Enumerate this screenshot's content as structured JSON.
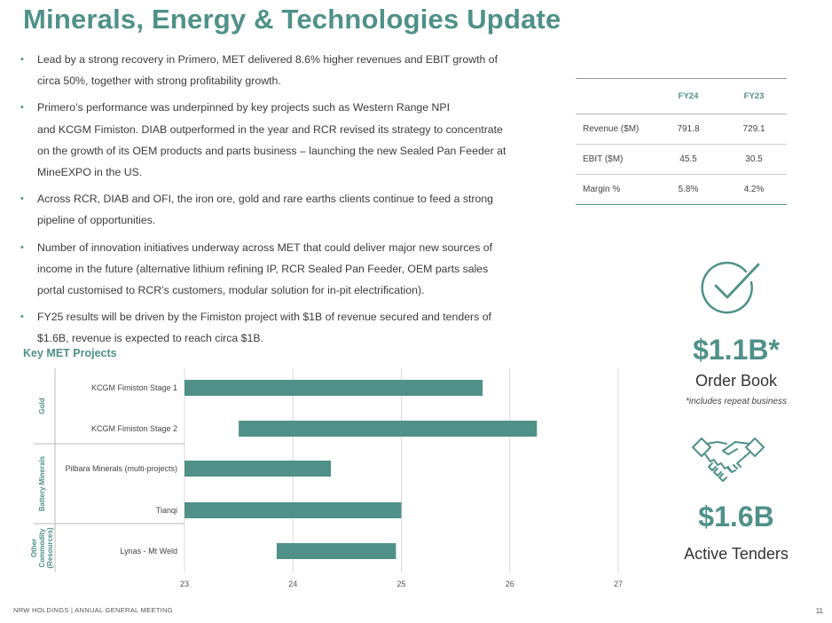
{
  "title": "Minerals, Energy & Technologies Update",
  "bullets": [
    [
      "Lead by a strong recovery in Primero, MET delivered 8.6% higher revenues and EBIT growth of",
      "circa 50%, together with strong profitability growth."
    ],
    [
      "Primero’s performance was underpinned by key projects such as Western Range NPI",
      "and KCGM Fimiston. DIAB outperformed in the year and RCR revised its strategy to concentrate",
      "on the growth of its OEM products and parts business – launching the new Sealed Pan Feeder at",
      "MineEXPO in the US."
    ],
    [
      "Across RCR, DIAB and OFI, the iron ore, gold and rare earths clients continue to feed a strong",
      "pipeline of opportunities."
    ],
    [
      "Number of innovation initiatives underway across MET that could deliver major new sources of",
      "income in the future (alternative lithium refining IP, RCR Sealed Pan Feeder, OEM parts sales",
      "portal customised to RCR’s customers, modular solution for in-pit electrification)."
    ],
    [
      "FY25 results will be driven by the Fimiston project with $1B of revenue secured and tenders of",
      "$1.6B, revenue is expected to reach circa $1B."
    ]
  ],
  "financials": {
    "columns": [
      "",
      "FY24",
      "FY23"
    ],
    "rows": [
      [
        "Revenue ($M)",
        "791.8",
        "729.1"
      ],
      [
        "EBIT ($M)",
        "45.5",
        "30.5"
      ],
      [
        "Margin %",
        "5.8%",
        "4.2%"
      ]
    ]
  },
  "order_book": {
    "value": "$1.1B*",
    "label": "Order Book",
    "note": "*includes repeat business",
    "icon": "checkmark-circle-icon"
  },
  "tenders": {
    "value": "$1.6B",
    "label": "Active Tenders",
    "icon": "handshake-icon"
  },
  "chart_title": "Key MET Projects",
  "chart_data": {
    "type": "bar",
    "orientation": "horizontal-gantt",
    "groups": [
      {
        "name": "Gold",
        "categories": [
          "KCGM Fimiston Stage 1",
          "KCGM Fimiston Stage 2"
        ]
      },
      {
        "name": "Battery Minerals",
        "categories": [
          "Pilbara Minerals (multi-projects)",
          "Tianqi"
        ]
      },
      {
        "name": "Other Commodity (Resources)",
        "categories": [
          "Lynas - Mt Weld"
        ]
      }
    ],
    "categories": [
      "KCGM Fimiston Stage 1",
      "KCGM Fimiston Stage 2",
      "Pilbara Minerals (multi-projects)",
      "Tianqi",
      "Lynas - Mt Weld"
    ],
    "series": [
      {
        "start": [
          23.0,
          23.5,
          23.0,
          23.0,
          23.85
        ],
        "end": [
          25.75,
          26.25,
          24.35,
          25.0,
          24.95
        ]
      }
    ],
    "xlim": [
      23,
      27
    ],
    "xticks": [
      "23",
      "24",
      "25",
      "26",
      "27"
    ],
    "colors": {
      "bar": "#4f9189"
    },
    "grid": true
  },
  "footer": {
    "left": "NRW HOLDINGS | ANNUAL GENERAL MEETING",
    "page": "11"
  }
}
